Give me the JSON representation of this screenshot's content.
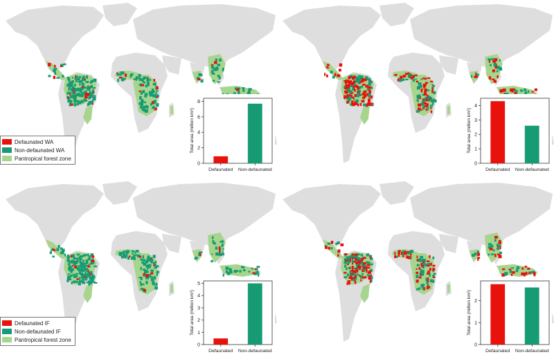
{
  "colors": {
    "defaunated": "#e8110c",
    "non_defaunated": "#169b74",
    "forest_zone": "#a8d58e",
    "land": "#dedede"
  },
  "panels": [
    {
      "id": "wa-current",
      "legend": [
        "Defaunated WA",
        "Non-defaunated WA",
        "Pantropical forest zone"
      ],
      "defaunation_level": 0.12
    },
    {
      "id": "wa-future",
      "legend": null,
      "defaunation_level": 0.62
    },
    {
      "id": "if-current",
      "legend": [
        "Defaunated IF",
        "Non-defaunated IF",
        "Pantropical forest zone"
      ],
      "defaunation_level": 0.1
    },
    {
      "id": "if-future",
      "legend": null,
      "defaunation_level": 0.5
    }
  ],
  "chart_data": [
    {
      "type": "bar",
      "categories": [
        "Defaunated",
        "Non-defaunated"
      ],
      "values": [
        0.9,
        7.7
      ],
      "ylabel": "Total area (million km²)",
      "ylim": [
        0,
        8.4
      ],
      "yticks": [
        "0",
        "2",
        "4",
        "6",
        "8"
      ],
      "ytick_values": [
        0,
        2,
        4,
        6,
        8
      ]
    },
    {
      "type": "bar",
      "categories": [
        "Defaunated",
        "Non-defaunated"
      ],
      "values": [
        4.3,
        2.6
      ],
      "ylabel": "Total area (million km²)",
      "ylim": [
        0,
        4.5
      ],
      "yticks": [
        "0",
        "1",
        "2",
        "3",
        "4"
      ],
      "ytick_values": [
        0,
        1,
        2,
        3,
        4
      ]
    },
    {
      "type": "bar",
      "categories": [
        "Defaunated",
        "Non-defaunated"
      ],
      "values": [
        0.5,
        5.0
      ],
      "ylabel": "Total area (million km²)",
      "ylim": [
        0,
        5.2
      ],
      "yticks": [
        "0",
        "1",
        "2",
        "3",
        "4",
        "5"
      ],
      "ytick_values": [
        0,
        1,
        2,
        3,
        4,
        5
      ]
    },
    {
      "type": "bar",
      "categories": [
        "Defaunated",
        "Non-defaunated"
      ],
      "values": [
        2.75,
        2.6
      ],
      "ylabel": "Total area (million km²)",
      "ylim": [
        0,
        2.9
      ],
      "yticks": [
        "0",
        "1",
        "2"
      ],
      "ytick_values": [
        0,
        1,
        2
      ]
    }
  ]
}
